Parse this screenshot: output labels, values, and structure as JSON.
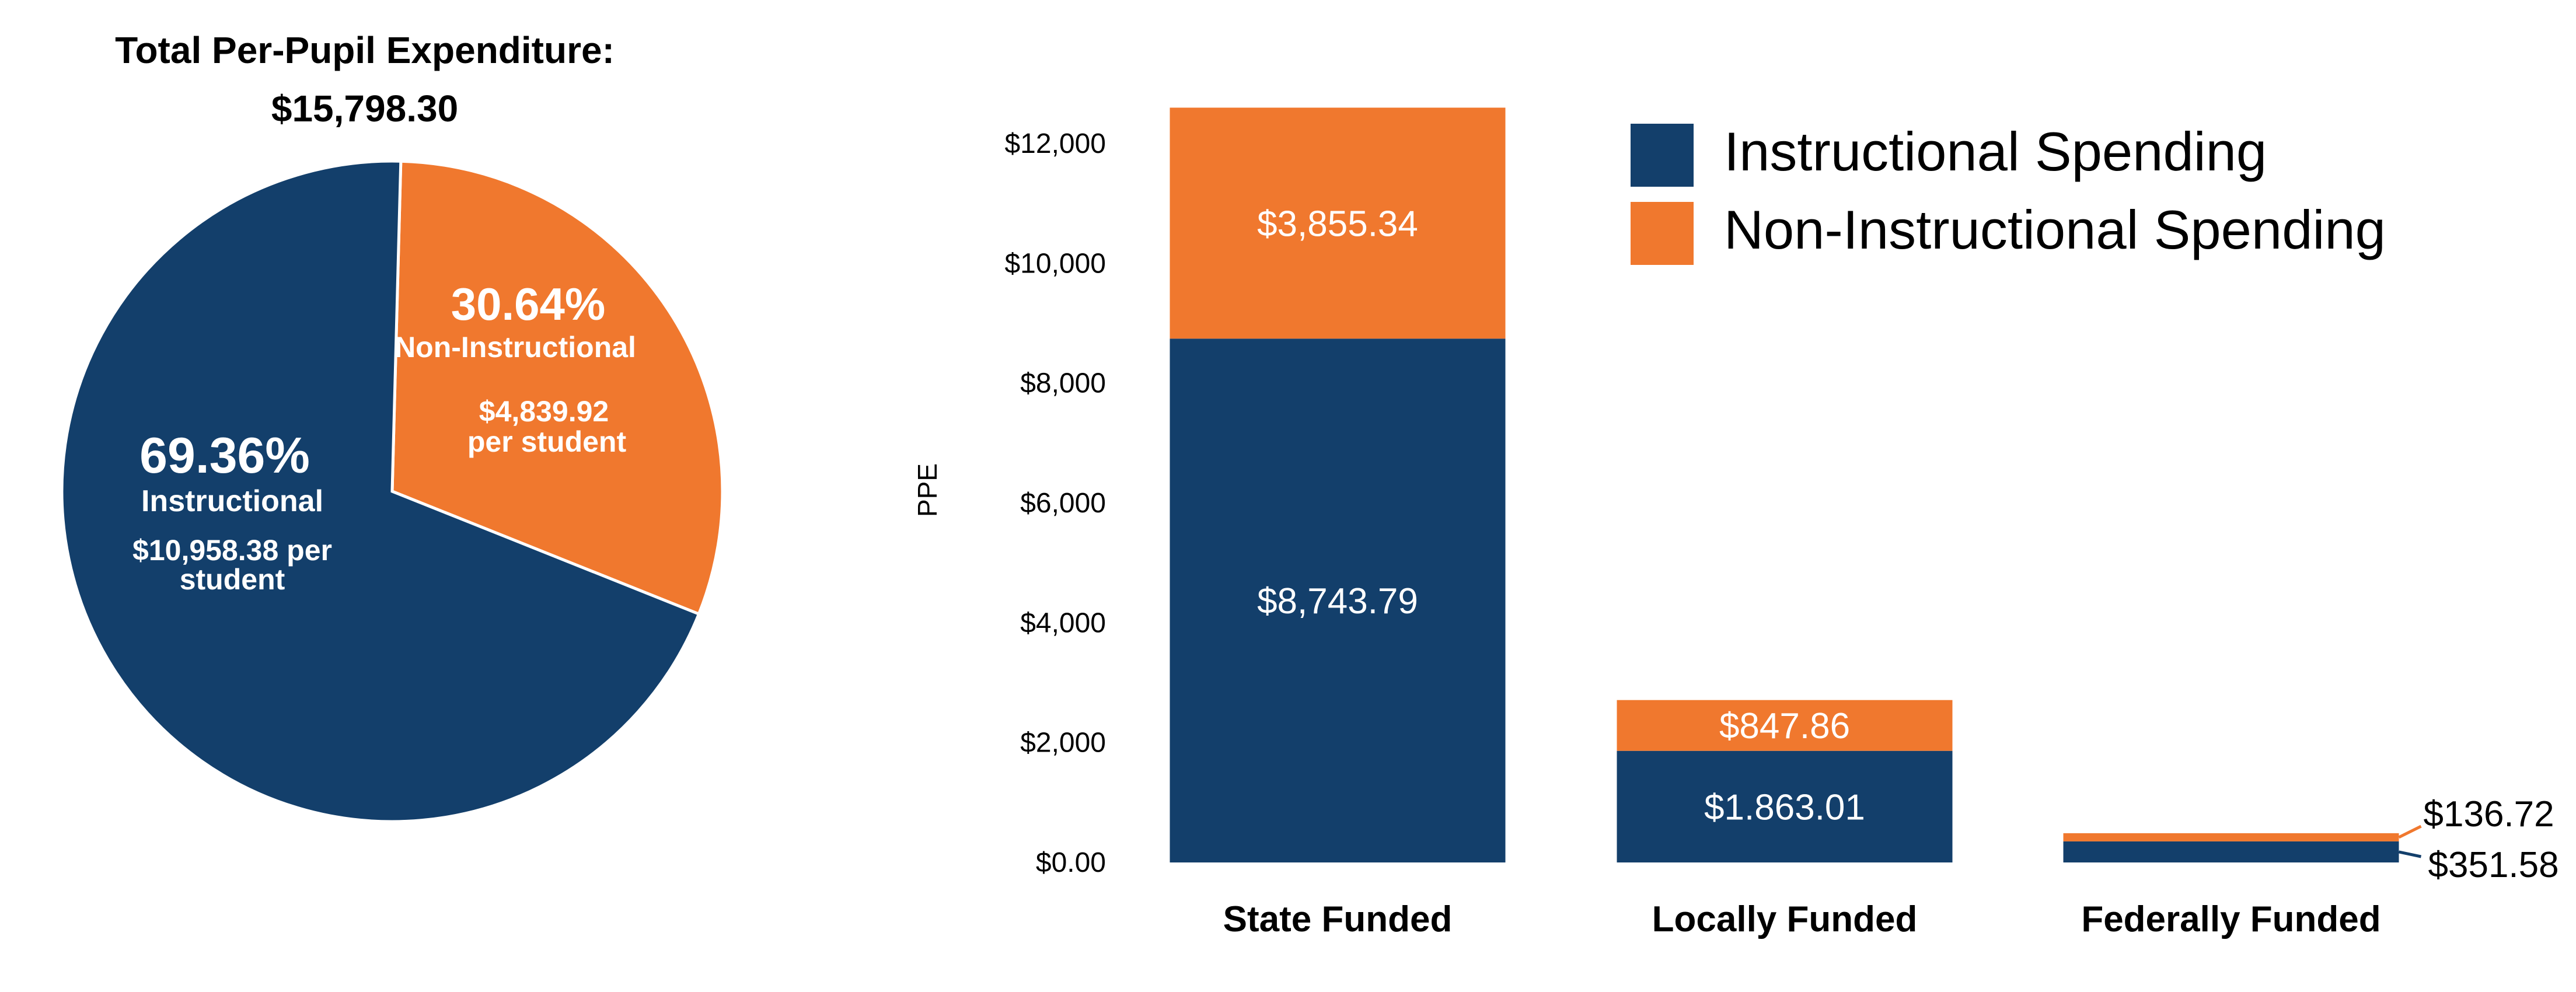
{
  "colors": {
    "instructional": "#133f6b",
    "non_instructional": "#f0782e"
  },
  "chart_data": [
    {
      "type": "pie",
      "title": "Total Per-Pupil Expenditure:",
      "subtitle": "$15,798.30",
      "slices": [
        {
          "name": "Non-Instructional",
          "percent": 30.64,
          "percent_label": "30.64%",
          "amount_line1": "$4,839.92",
          "amount_line2": "per student"
        },
        {
          "name": "Instructional",
          "percent": 69.36,
          "percent_label": "69.36%",
          "amount_line1": "$10,958.38 per",
          "amount_line2": "student"
        }
      ]
    },
    {
      "type": "bar",
      "stacked": true,
      "ylabel": "PPE",
      "ylim": [
        0,
        12000
      ],
      "yticks": [
        0,
        2000,
        4000,
        6000,
        8000,
        10000,
        12000
      ],
      "ytick_labels": [
        "$0.00",
        "$2,000",
        "$4,000",
        "$6,000",
        "$8,000",
        "$10,000",
        "$12,000"
      ],
      "categories": [
        "State Funded",
        "Locally Funded",
        "Federally Funded"
      ],
      "legend_position": "top-right",
      "series": [
        {
          "name": "Instructional Spending",
          "values": [
            8743.79,
            1863.01,
            351.58
          ],
          "labels": [
            "$8,743.79",
            "$1.863.01",
            "$351.58"
          ]
        },
        {
          "name": "Non-Instructional Spending",
          "values": [
            3855.34,
            847.86,
            136.72
          ],
          "labels": [
            "$3,855.34",
            "$847.86",
            "$136.72"
          ]
        }
      ]
    }
  ]
}
